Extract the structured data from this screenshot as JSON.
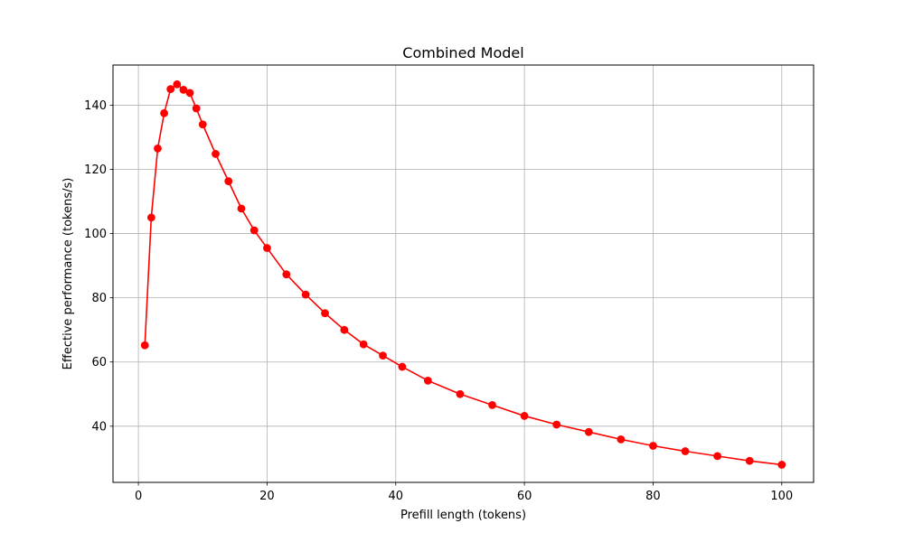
{
  "chart_data": {
    "type": "line",
    "title": "Combined Model",
    "xlabel": "Prefill length (tokens)",
    "ylabel": "Effective performance (tokens/s)",
    "xlim": [
      -3.95,
      104.95
    ],
    "ylim": [
      22.5,
      152.5
    ],
    "xticks": [
      0,
      20,
      40,
      60,
      80,
      100
    ],
    "yticks": [
      40,
      60,
      80,
      100,
      120,
      140
    ],
    "grid": true,
    "series": [
      {
        "color": "#ff0000",
        "marker": "circle",
        "points": [
          [
            1,
            65.2
          ],
          [
            2,
            105.0
          ],
          [
            3,
            126.5
          ],
          [
            4,
            137.5
          ],
          [
            5,
            145.0
          ],
          [
            6,
            146.5
          ],
          [
            7,
            144.8
          ],
          [
            8,
            143.8
          ],
          [
            9,
            139.0
          ],
          [
            10,
            134.0
          ],
          [
            12,
            124.8
          ],
          [
            14,
            116.3
          ],
          [
            16,
            107.8
          ],
          [
            18,
            101.0
          ],
          [
            20,
            95.5
          ],
          [
            23,
            87.3
          ],
          [
            26,
            81.0
          ],
          [
            29,
            75.2
          ],
          [
            32,
            70.0
          ],
          [
            35,
            65.5
          ],
          [
            38,
            62.0
          ],
          [
            41,
            58.5
          ],
          [
            45,
            54.2
          ],
          [
            50,
            50.0
          ],
          [
            55,
            46.6
          ],
          [
            60,
            43.2
          ],
          [
            65,
            40.5
          ],
          [
            70,
            38.2
          ],
          [
            75,
            35.9
          ],
          [
            80,
            33.9
          ],
          [
            85,
            32.2
          ],
          [
            90,
            30.7
          ],
          [
            95,
            29.2
          ],
          [
            100,
            28.0
          ]
        ]
      }
    ]
  }
}
